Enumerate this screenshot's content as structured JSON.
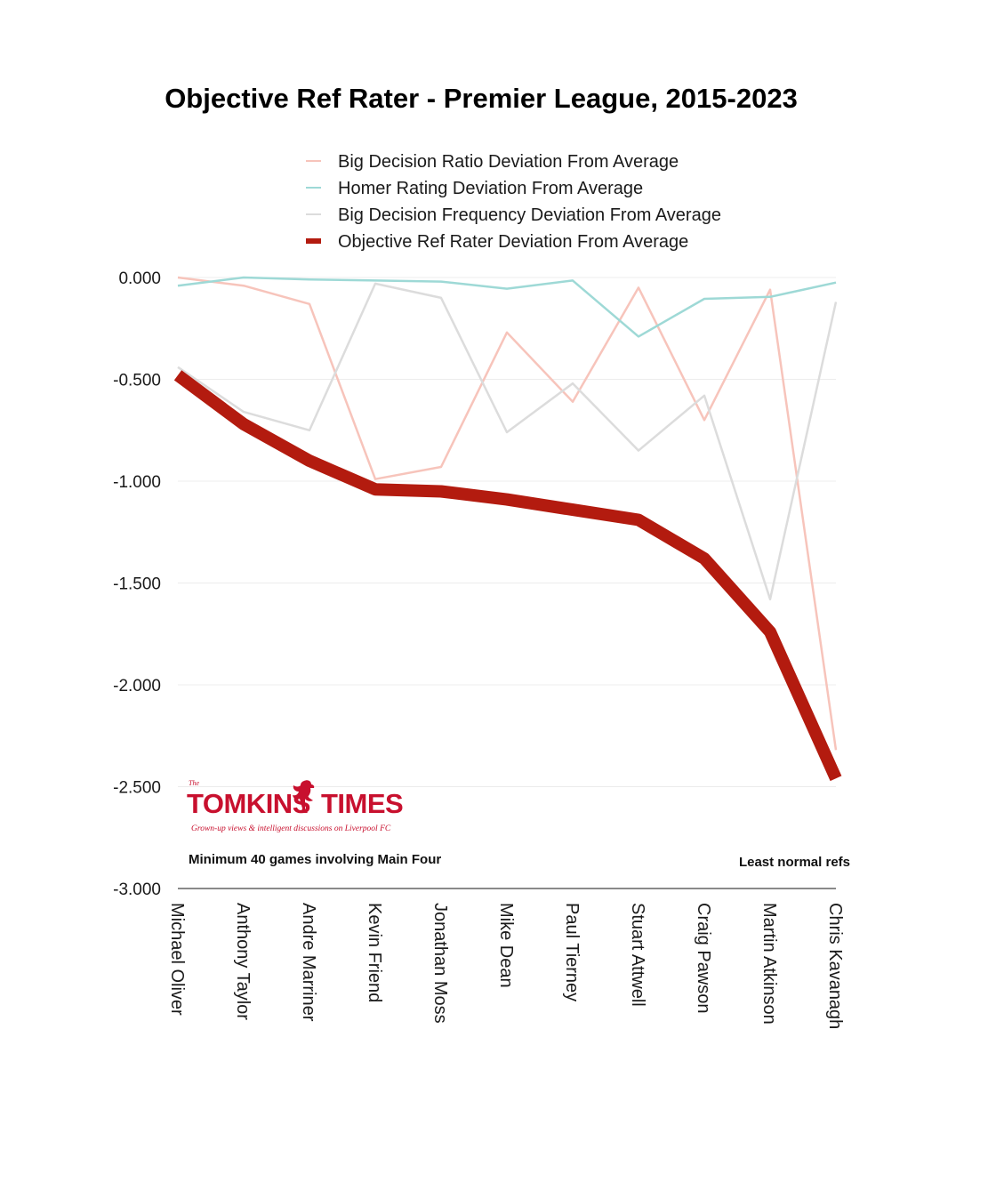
{
  "chart_data": {
    "type": "line",
    "title": "Objective Ref Rater - Premier League, 2015-2023",
    "categories": [
      "Michael Oliver",
      "Anthony Taylor",
      "Andre Marriner",
      "Kevin Friend",
      "Jonathan Moss",
      "Mike Dean",
      "Paul Tierney",
      "Stuart Attwell",
      "Craig Pawson",
      "Martin Atkinson",
      "Chris Kavanagh"
    ],
    "ylim": [
      -3.0,
      0.0
    ],
    "yticks": [
      0.0,
      -0.5,
      -1.0,
      -1.5,
      -2.0,
      -2.5,
      -3.0
    ],
    "ytick_labels": [
      "0.000",
      "-0.500",
      "-1.000",
      "-1.500",
      "-2.000",
      "-2.500",
      "-3.000"
    ],
    "grid": true,
    "legend_position": "top",
    "series": [
      {
        "name": "Big Decision Ratio Deviation From Average",
        "color": "#f7c4bb",
        "weight": "thin",
        "values": [
          0.0,
          -0.04,
          -0.13,
          -0.99,
          -0.93,
          -0.27,
          -0.61,
          -0.05,
          -0.7,
          -0.06,
          -2.32
        ]
      },
      {
        "name": "Homer Rating Deviation From Average",
        "color": "#9ed9d6",
        "weight": "thin",
        "values": [
          -0.04,
          0.0,
          -0.01,
          -0.015,
          -0.02,
          -0.055,
          -0.015,
          -0.29,
          -0.105,
          -0.095,
          -0.025
        ]
      },
      {
        "name": "Big Decision Frequency Deviation From Average",
        "color": "#dcdcdc",
        "weight": "thin",
        "values": [
          -0.44,
          -0.66,
          -0.75,
          -0.03,
          -0.1,
          -0.76,
          -0.52,
          -0.85,
          -0.58,
          -1.58,
          -0.12
        ]
      },
      {
        "name": "Objective Ref Rater Deviation From Average",
        "color": "#b31b0f",
        "weight": "thick",
        "values": [
          -0.48,
          -0.72,
          -0.9,
          -1.04,
          -1.05,
          -1.09,
          -1.14,
          -1.19,
          -1.38,
          -1.74,
          -2.46
        ]
      }
    ]
  },
  "annotations": {
    "left_note": "Minimum 40 games involving Main Four",
    "right_note": "Least normal refs"
  },
  "logo": {
    "small": "The",
    "left": "TOMKINS",
    "right": "TIMES",
    "tagline": "Grown-up views & intelligent discussions on Liverpool FC",
    "color": "#c8102e",
    "icon": "liver-bird-icon"
  }
}
